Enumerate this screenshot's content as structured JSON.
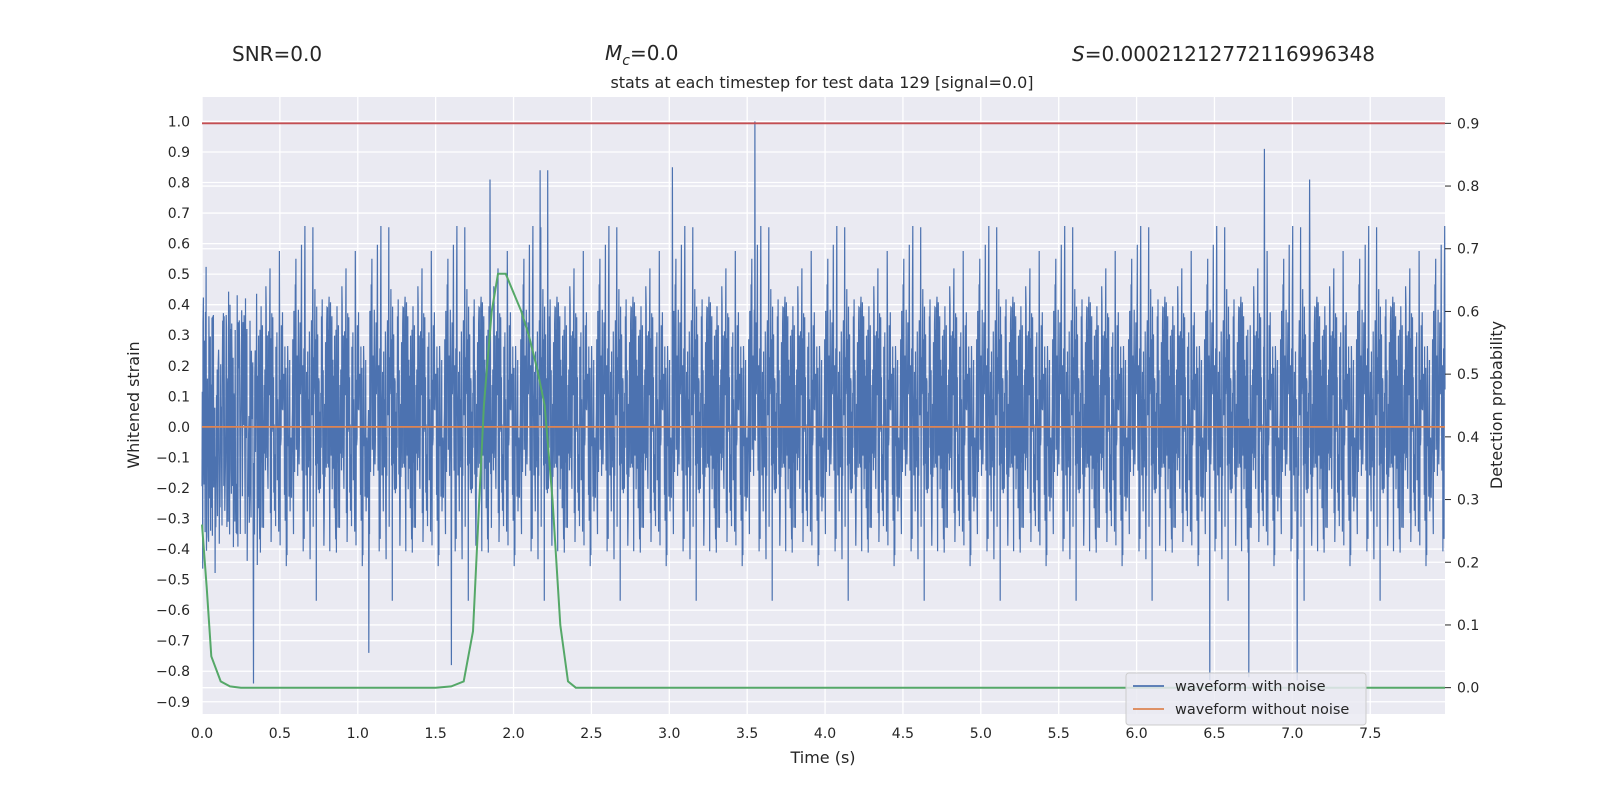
{
  "header": {
    "snr": "SNR=0.0",
    "mc_symbol": "M",
    "mc_sub": "c",
    "mc_value": "=0.0",
    "s_symbol": "S",
    "s_value": "=0.00021212772116996348"
  },
  "chart_data": {
    "type": "line",
    "title": "stats at each timestep for test data 129 [signal=0.0]",
    "xlabel": "Time (s)",
    "ylabel_left": "Whitened strain",
    "ylabel_right": "Detection probability",
    "xlim": [
      0.0,
      7.98
    ],
    "ylim_left": [
      -0.94,
      1.08
    ],
    "ylim_right": [
      -0.042,
      0.942
    ],
    "x_ticks": [
      "0.0",
      "0.5",
      "1.0",
      "1.5",
      "2.0",
      "2.5",
      "3.0",
      "3.5",
      "4.0",
      "4.5",
      "5.0",
      "5.5",
      "6.0",
      "6.5",
      "7.0",
      "7.5"
    ],
    "y_ticks_left": [
      "−0.9",
      "−0.8",
      "−0.7",
      "−0.6",
      "−0.5",
      "−0.4",
      "−0.3",
      "−0.2",
      "−0.1",
      "0.0",
      "0.1",
      "0.2",
      "0.3",
      "0.4",
      "0.5",
      "0.6",
      "0.7",
      "0.8",
      "0.9",
      "1.0"
    ],
    "y_ticks_right": [
      "0.0",
      "0.1",
      "0.2",
      "0.3",
      "0.4",
      "0.5",
      "0.6",
      "0.7",
      "0.8",
      "0.9"
    ],
    "grid": true,
    "legend_position": "lower-right",
    "colors": {
      "noise": "#4c72b0",
      "clean": "#dd8452",
      "prob": "#55a868",
      "threshold": "#c44e52",
      "background": "#eaeaf2",
      "grid": "#ffffff"
    },
    "series": [
      {
        "name": "waveform with noise",
        "axis": "left",
        "style": "dense-noise",
        "envelope_typical": [
          -0.42,
          0.42
        ],
        "peaks": [
          {
            "x": 3.55,
            "y": 1.0
          },
          {
            "x": 0.33,
            "y": -0.84
          },
          {
            "x": 6.82,
            "y": 0.91
          },
          {
            "x": 7.11,
            "y": 0.81
          },
          {
            "x": 1.85,
            "y": 0.81
          },
          {
            "x": 2.17,
            "y": 0.84
          },
          {
            "x": 2.22,
            "y": 0.84
          },
          {
            "x": 3.02,
            "y": 0.85
          },
          {
            "x": 6.72,
            "y": -0.82
          },
          {
            "x": 6.47,
            "y": -0.83
          },
          {
            "x": 7.03,
            "y": -0.83
          },
          {
            "x": 1.6,
            "y": -0.78
          },
          {
            "x": 1.07,
            "y": -0.74
          }
        ]
      },
      {
        "name": "waveform without noise",
        "axis": "left",
        "x": [
          0.0,
          7.98
        ],
        "y": [
          0.0,
          0.0
        ]
      },
      {
        "name": "",
        "axis": "right",
        "x": [
          0.0,
          0.03,
          0.06,
          0.12,
          0.18,
          0.25,
          0.5,
          0.75,
          1.0,
          1.5,
          1.6,
          1.68,
          1.74,
          1.78,
          1.81,
          1.86,
          1.9,
          1.95,
          2.0,
          2.05,
          2.1,
          2.15,
          2.2,
          2.25,
          2.3,
          2.35,
          2.4,
          2.5,
          3.0,
          4.0,
          5.0,
          6.0,
          7.0,
          7.98
        ],
        "y": [
          0.26,
          0.16,
          0.05,
          0.01,
          0.002,
          0.0,
          0.0,
          0.0,
          0.0,
          0.0,
          0.002,
          0.01,
          0.09,
          0.3,
          0.45,
          0.6,
          0.66,
          0.66,
          0.63,
          0.6,
          0.56,
          0.51,
          0.45,
          0.3,
          0.1,
          0.01,
          0.0,
          0.0,
          0.0,
          0.0,
          0.0,
          0.0,
          0.0,
          0.0
        ]
      },
      {
        "name": "",
        "axis": "right",
        "type": "hline",
        "y": 0.9
      }
    ]
  }
}
